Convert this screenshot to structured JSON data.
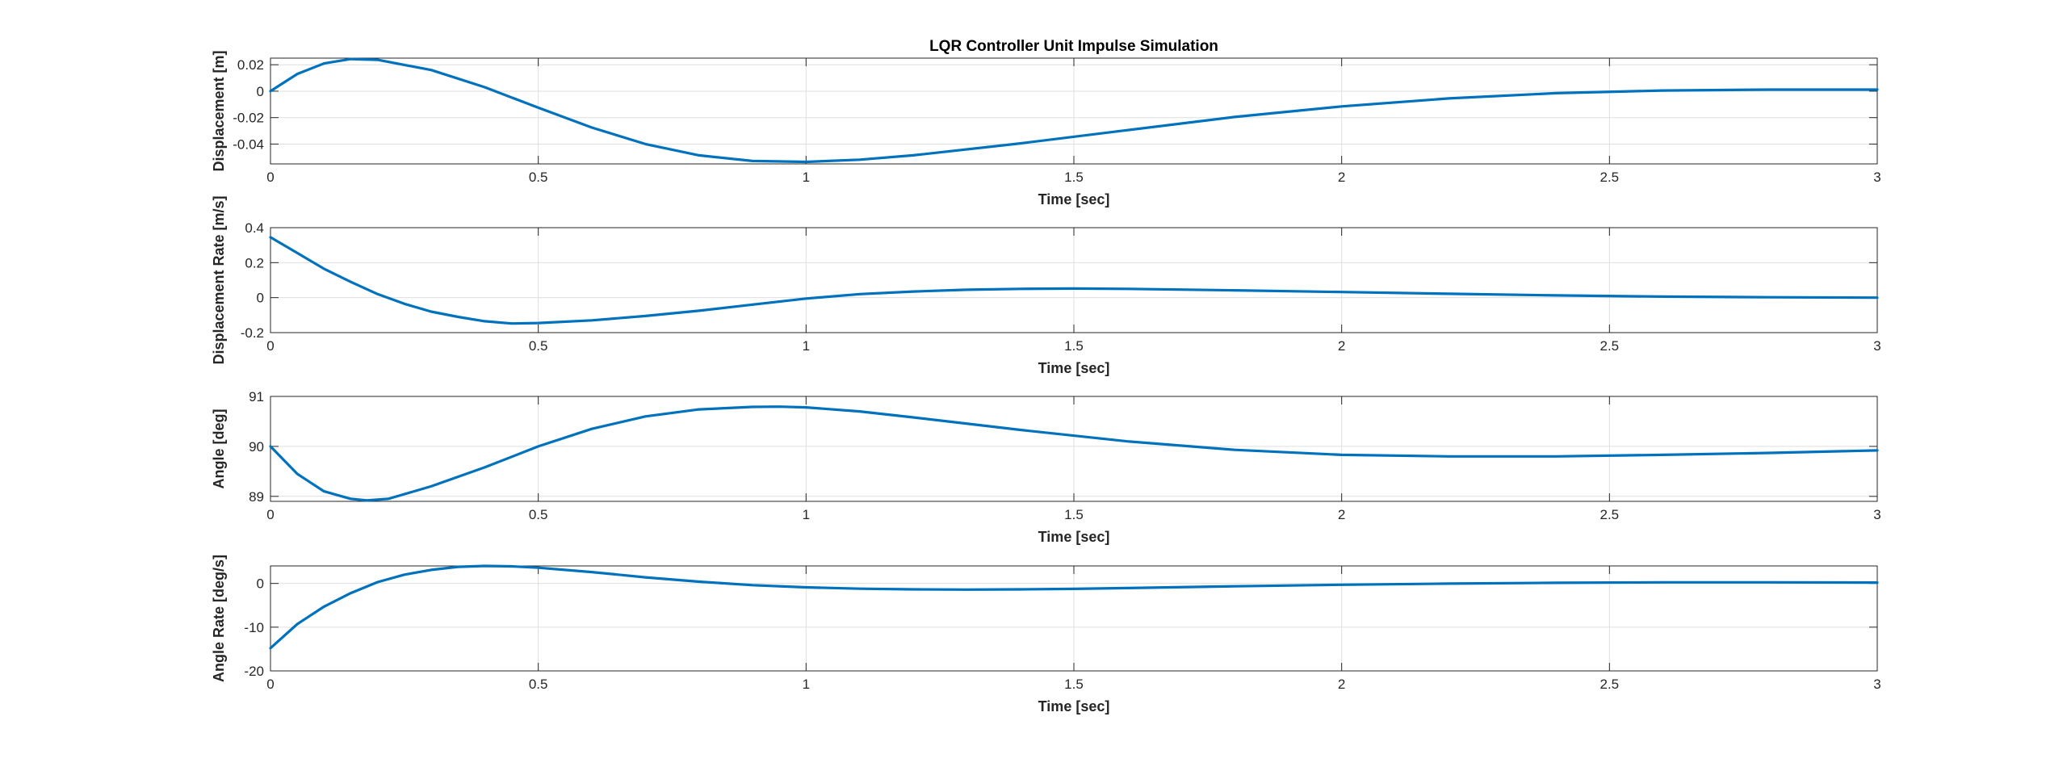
{
  "colors": {
    "series": "#0072BD",
    "axes": "#262626",
    "grid": "#dfdfdf"
  },
  "chart_data": [
    {
      "type": "line",
      "title": "LQR Controller Unit Impulse Simulation",
      "xlabel": "Time [sec]",
      "ylabel": "Displacement [m]",
      "xlim": [
        0,
        3
      ],
      "ylim": [
        -0.055,
        0.025
      ],
      "xticks": [
        0,
        0.5,
        1,
        1.5,
        2,
        2.5,
        3
      ],
      "xtick_labels": [
        "0",
        "0.5",
        "1",
        "1.5",
        "2",
        "2.5",
        "3"
      ],
      "yticks": [
        0.02,
        0,
        -0.02,
        -0.04
      ],
      "ytick_labels": [
        "0.02",
        "0",
        "-0.02",
        "-0.04"
      ],
      "grid": true,
      "series": [
        {
          "x": [
            0,
            0.05,
            0.1,
            0.15,
            0.2,
            0.3,
            0.4,
            0.5,
            0.6,
            0.7,
            0.8,
            0.9,
            1.0,
            1.1,
            1.2,
            1.4,
            1.6,
            1.8,
            2.0,
            2.2,
            2.4,
            2.6,
            2.8,
            3.0
          ],
          "y": [
            0,
            0.013,
            0.021,
            0.0243,
            0.0237,
            0.016,
            0.003,
            -0.0125,
            -0.0275,
            -0.04,
            -0.0485,
            -0.0528,
            -0.0535,
            -0.0518,
            -0.0485,
            -0.0395,
            -0.0295,
            -0.0195,
            -0.0115,
            -0.0055,
            -0.0015,
            0.0005,
            0.0012,
            0.0012
          ]
        }
      ]
    },
    {
      "type": "line",
      "title": "",
      "xlabel": "Time [sec]",
      "ylabel": "Displacement Rate [m/s]",
      "xlim": [
        0,
        3
      ],
      "ylim": [
        -0.2,
        0.4
      ],
      "xticks": [
        0,
        0.5,
        1,
        1.5,
        2,
        2.5,
        3
      ],
      "xtick_labels": [
        "0",
        "0.5",
        "1",
        "1.5",
        "2",
        "2.5",
        "3"
      ],
      "yticks": [
        0.4,
        0.2,
        0,
        -0.2
      ],
      "ytick_labels": [
        "0.4",
        "0.2",
        "0",
        "-0.2"
      ],
      "grid": true,
      "series": [
        {
          "x": [
            0,
            0.05,
            0.1,
            0.15,
            0.2,
            0.25,
            0.3,
            0.35,
            0.4,
            0.45,
            0.5,
            0.6,
            0.7,
            0.8,
            0.9,
            1.0,
            1.1,
            1.2,
            1.3,
            1.4,
            1.5,
            1.6,
            1.8,
            2.0,
            2.2,
            2.4,
            2.6,
            2.8,
            3.0
          ],
          "y": [
            0.345,
            0.255,
            0.165,
            0.09,
            0.02,
            -0.035,
            -0.08,
            -0.11,
            -0.135,
            -0.148,
            -0.145,
            -0.13,
            -0.105,
            -0.075,
            -0.04,
            -0.005,
            0.02,
            0.035,
            0.045,
            0.05,
            0.052,
            0.05,
            0.042,
            0.032,
            0.022,
            0.013,
            0.006,
            0.002,
            0.0
          ]
        }
      ]
    },
    {
      "type": "line",
      "title": "",
      "xlabel": "Time [sec]",
      "ylabel": "Angle [deg]",
      "xlim": [
        0,
        3
      ],
      "ylim": [
        88.9,
        91
      ],
      "xticks": [
        0,
        0.5,
        1,
        1.5,
        2,
        2.5,
        3
      ],
      "xtick_labels": [
        "0",
        "0.5",
        "1",
        "1.5",
        "2",
        "2.5",
        "3"
      ],
      "yticks": [
        91,
        90,
        89
      ],
      "ytick_labels": [
        "91",
        "90",
        "89"
      ],
      "grid": true,
      "series": [
        {
          "x": [
            0,
            0.05,
            0.1,
            0.15,
            0.18,
            0.22,
            0.3,
            0.4,
            0.5,
            0.6,
            0.7,
            0.8,
            0.9,
            0.95,
            1.0,
            1.1,
            1.2,
            1.4,
            1.6,
            1.8,
            2.0,
            2.2,
            2.4,
            2.6,
            2.8,
            3.0
          ],
          "y": [
            90.0,
            89.45,
            89.1,
            88.95,
            88.92,
            88.95,
            89.2,
            89.58,
            90.0,
            90.35,
            90.6,
            90.74,
            90.79,
            90.795,
            90.78,
            90.7,
            90.58,
            90.33,
            90.1,
            89.93,
            89.83,
            89.8,
            89.8,
            89.83,
            89.87,
            89.92
          ]
        }
      ]
    },
    {
      "type": "line",
      "title": "",
      "xlabel": "Time [sec]",
      "ylabel": "Angle Rate [deg/s]",
      "xlim": [
        0,
        3
      ],
      "ylim": [
        -20,
        4
      ],
      "xticks": [
        0,
        0.5,
        1,
        1.5,
        2,
        2.5,
        3
      ],
      "xtick_labels": [
        "0",
        "0.5",
        "1",
        "1.5",
        "2",
        "2.5",
        "3"
      ],
      "yticks": [
        0,
        -10,
        -20
      ],
      "ytick_labels": [
        "0",
        "-10",
        "-20"
      ],
      "grid": true,
      "series": [
        {
          "x": [
            0,
            0.05,
            0.1,
            0.15,
            0.2,
            0.25,
            0.3,
            0.35,
            0.4,
            0.45,
            0.5,
            0.6,
            0.7,
            0.8,
            0.9,
            1.0,
            1.1,
            1.2,
            1.3,
            1.4,
            1.5,
            1.6,
            1.8,
            2.0,
            2.2,
            2.4,
            2.6,
            2.8,
            3.0
          ],
          "y": [
            -14.8,
            -9.3,
            -5.3,
            -2.2,
            0.3,
            2.0,
            3.1,
            3.8,
            4.0,
            3.9,
            3.6,
            2.6,
            1.4,
            0.4,
            -0.4,
            -0.9,
            -1.2,
            -1.35,
            -1.4,
            -1.35,
            -1.25,
            -1.05,
            -0.65,
            -0.3,
            -0.05,
            0.15,
            0.25,
            0.25,
            0.2
          ]
        }
      ]
    }
  ]
}
